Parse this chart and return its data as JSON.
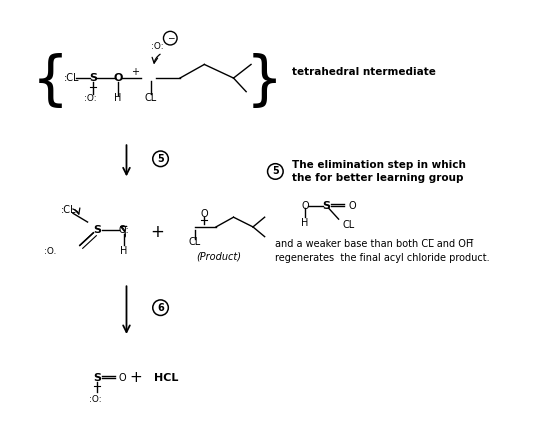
{
  "background_color": "#ffffff",
  "figsize": [
    5.41,
    4.48
  ],
  "dpi": 100,
  "tetrahedral_label": "tetrahedral ntermediate",
  "step5_line1": "The elimination step in which",
  "step5_line2": "the for better learning group",
  "step5_line3": "and a weaker base than both CL̅ and OH̅",
  "step5_line4": "regenerates  the final acyl chloride product.",
  "product_label": "(Product)"
}
